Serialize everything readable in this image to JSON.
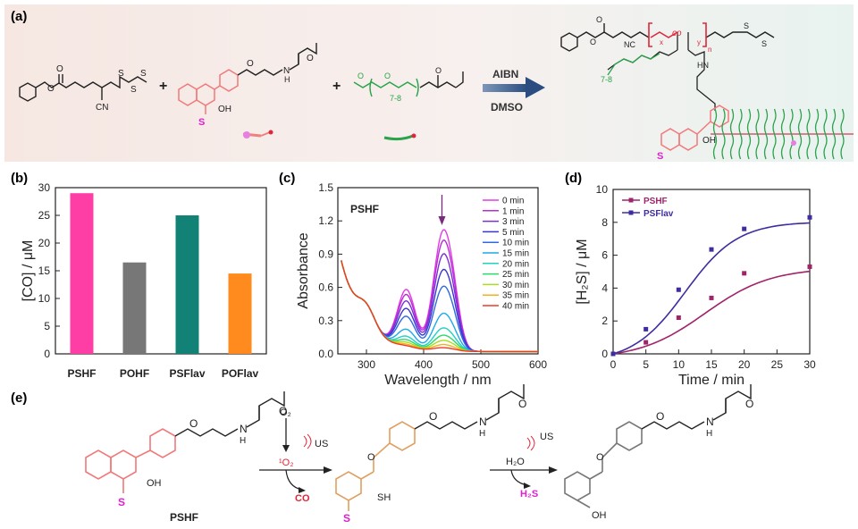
{
  "colors": {
    "pink": "#ff3ea5",
    "gray": "#777777",
    "teal": "#128276",
    "orange": "#ff8a1e",
    "magenta": "#a0246a",
    "purple": "#3d2da0",
    "salmon": "#f2787a",
    "tan": "#e0a060",
    "green": "#2aa34a",
    "red": "#e0263a",
    "sulfur": "#e01fd0"
  },
  "panel_a": {
    "label": "(a)",
    "plus": "+",
    "s_label": "S",
    "oh_label": "OH",
    "cn_label": "CN",
    "nc_label": "NC",
    "repeat_label": "7-8",
    "co_label": "co",
    "x_label": "x",
    "y_label": "y",
    "n_label": "n",
    "hn_label": "HN",
    "arrow_top": "AIBN",
    "arrow_bottom": "DMSO"
  },
  "panel_e": {
    "label": "(e)",
    "compound": "PSHF",
    "step1_reagent": "O₂",
    "step1_us": "US",
    "step1_singlet": "¹O₂",
    "step1_product": "CO",
    "step2_reagent": "H₂O",
    "step2_us": "US",
    "step2_product": "H₂S",
    "s_label": "S",
    "oh_label": "OH",
    "sh_label": "SH",
    "n_label": "N",
    "h_label": "H"
  },
  "chart_data": [
    {
      "panel": "(b)",
      "type": "bar",
      "categories": [
        "PSHF",
        "POHF",
        "PSFlav",
        "POFlav"
      ],
      "values": [
        29,
        16.5,
        25,
        14.5
      ],
      "ylabel": "[CO] / μM",
      "ylim": [
        0,
        30
      ],
      "yticks": [
        "0",
        "5",
        "10",
        "15",
        "20",
        "25",
        "30"
      ]
    },
    {
      "panel": "(c)",
      "type": "line",
      "title": "PSHF",
      "xlabel": "Wavelength / nm",
      "ylabel": "Absorbance",
      "xlim": [
        250,
        600
      ],
      "ylim": [
        0,
        1.5
      ],
      "xticks": [
        "300",
        "400",
        "500",
        "600"
      ],
      "yticks": [
        "0.0",
        "0.3",
        "0.6",
        "0.9",
        "1.2",
        "1.5"
      ],
      "series": [
        {
          "name": "0 min",
          "peak": 1.16,
          "color": "#e23be6"
        },
        {
          "name": "1 min",
          "peak": 1.06,
          "color": "#b62ed6"
        },
        {
          "name": "3 min",
          "peak": 0.93,
          "color": "#7a30d6"
        },
        {
          "name": "5 min",
          "peak": 0.78,
          "color": "#3c35d0"
        },
        {
          "name": "10 min",
          "peak": 0.62,
          "color": "#2f6ae0"
        },
        {
          "name": "15 min",
          "peak": 0.36,
          "color": "#1fa9e8"
        },
        {
          "name": "20 min",
          "peak": 0.22,
          "color": "#21d1c2"
        },
        {
          "name": "25 min",
          "peak": 0.15,
          "color": "#2fd86a"
        },
        {
          "name": "30 min",
          "peak": 0.1,
          "color": "#a9dc23"
        },
        {
          "name": "35 min",
          "peak": 0.06,
          "color": "#f2b21b"
        },
        {
          "name": "40 min",
          "peak": 0.03,
          "color": "#ee3a25"
        }
      ]
    },
    {
      "panel": "(d)",
      "type": "line",
      "xlabel": "Time / min",
      "ylabel": "[H₂S] / μM",
      "xlim": [
        0,
        30
      ],
      "ylim": [
        0,
        10
      ],
      "xticks": [
        "0",
        "5",
        "10",
        "15",
        "20",
        "25",
        "30"
      ],
      "yticks": [
        "0",
        "2",
        "4",
        "6",
        "8",
        "10"
      ],
      "x": [
        0,
        5,
        10,
        15,
        20,
        30
      ],
      "series": [
        {
          "name": "PSHF",
          "values": [
            0,
            0.7,
            2.2,
            3.4,
            4.9,
            5.3
          ],
          "color": "#a0246a"
        },
        {
          "name": "PSFlav",
          "values": [
            0,
            1.5,
            3.9,
            6.35,
            7.6,
            8.3
          ],
          "color": "#3d2da0"
        }
      ]
    }
  ]
}
